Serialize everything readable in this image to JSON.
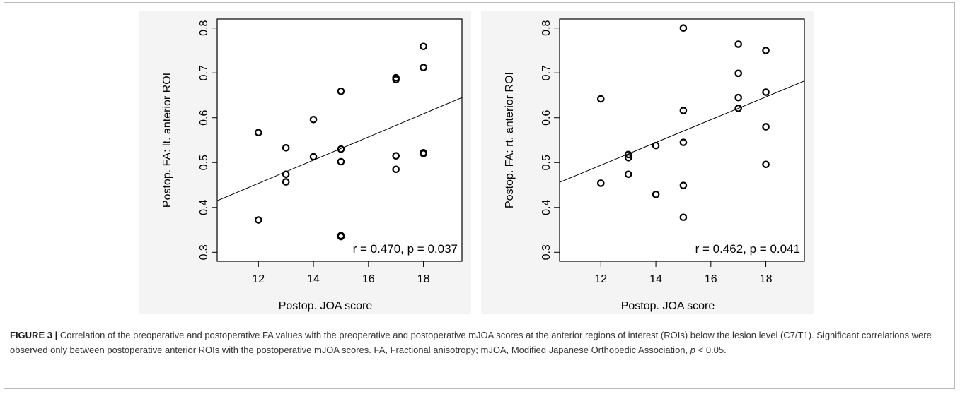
{
  "chart_data": [
    {
      "type": "scatter",
      "xlabel": "Postop. JOA score",
      "ylabel": "Postop. FA: lt. anterior ROI",
      "xlim": [
        10.5,
        19.4
      ],
      "ylim": [
        0.28,
        0.82
      ],
      "xticks": [
        "12",
        "14",
        "16",
        "18"
      ],
      "yticks": [
        "0.3",
        "0.4",
        "0.5",
        "0.6",
        "0.7",
        "0.8"
      ],
      "annotation": "r = 0.470, p = 0.037",
      "points": [
        {
          "x": 12,
          "y": 0.567
        },
        {
          "x": 12,
          "y": 0.372
        },
        {
          "x": 13,
          "y": 0.533
        },
        {
          "x": 13,
          "y": 0.474
        },
        {
          "x": 13,
          "y": 0.457
        },
        {
          "x": 14,
          "y": 0.596
        },
        {
          "x": 14,
          "y": 0.513
        },
        {
          "x": 15,
          "y": 0.659
        },
        {
          "x": 15,
          "y": 0.53
        },
        {
          "x": 15,
          "y": 0.502
        },
        {
          "x": 15,
          "y": 0.337
        },
        {
          "x": 15,
          "y": 0.335
        },
        {
          "x": 17,
          "y": 0.689
        },
        {
          "x": 17,
          "y": 0.685
        },
        {
          "x": 17,
          "y": 0.515
        },
        {
          "x": 17,
          "y": 0.485
        },
        {
          "x": 18,
          "y": 0.759
        },
        {
          "x": 18,
          "y": 0.712
        },
        {
          "x": 18,
          "y": 0.522
        },
        {
          "x": 18,
          "y": 0.52
        }
      ],
      "fit_line": {
        "x": [
          10.5,
          19.4
        ],
        "y": [
          0.415,
          0.645
        ]
      }
    },
    {
      "type": "scatter",
      "xlabel": "Postop. JOA score",
      "ylabel": "Postop. FA: rt. anterior ROI",
      "xlim": [
        10.5,
        19.4
      ],
      "ylim": [
        0.28,
        0.82
      ],
      "xticks": [
        "12",
        "14",
        "16",
        "18"
      ],
      "yticks": [
        "0.3",
        "0.4",
        "0.5",
        "0.6",
        "0.7",
        "0.8"
      ],
      "annotation": "r = 0.462, p = 0.041",
      "points": [
        {
          "x": 12,
          "y": 0.642
        },
        {
          "x": 12,
          "y": 0.454
        },
        {
          "x": 13,
          "y": 0.518
        },
        {
          "x": 13,
          "y": 0.511
        },
        {
          "x": 13,
          "y": 0.474
        },
        {
          "x": 14,
          "y": 0.538
        },
        {
          "x": 14,
          "y": 0.429
        },
        {
          "x": 15,
          "y": 0.8
        },
        {
          "x": 15,
          "y": 0.616
        },
        {
          "x": 15,
          "y": 0.545
        },
        {
          "x": 15,
          "y": 0.449
        },
        {
          "x": 15,
          "y": 0.378
        },
        {
          "x": 17,
          "y": 0.764
        },
        {
          "x": 17,
          "y": 0.699
        },
        {
          "x": 17,
          "y": 0.645
        },
        {
          "x": 17,
          "y": 0.621
        },
        {
          "x": 18,
          "y": 0.75
        },
        {
          "x": 18,
          "y": 0.657
        },
        {
          "x": 18,
          "y": 0.58
        },
        {
          "x": 18,
          "y": 0.496
        }
      ],
      "fit_line": {
        "x": [
          10.5,
          19.4
        ],
        "y": [
          0.456,
          0.682
        ]
      }
    }
  ],
  "caption": {
    "label": "FIGURE 3 |",
    "text_main": " Correlation of the preoperative and postoperative FA values with the preoperative and postoperative mJOA scores at the anterior regions of interest (ROIs) below the lesion level (C7/T1). Significant correlations were observed only between postoperative anterior ROIs with the postoperative mJOA scores. FA, Fractional anisotropy; mJOA, Modified Japanese Orthopedic Association, ",
    "p_symbol": "p",
    "text_end": " < 0.05."
  }
}
